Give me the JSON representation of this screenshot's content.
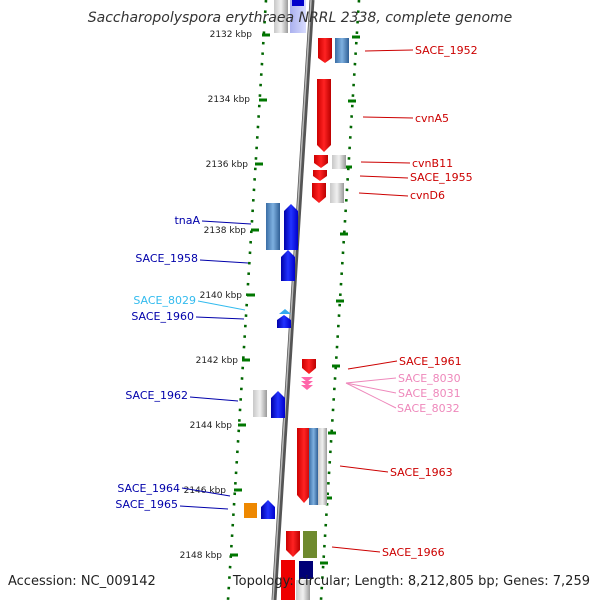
{
  "title": "Saccharopolyspora erythraea NRRL 2338, complete genome",
  "accession": "Accession: NC_009142",
  "topology": "Topology: circular; Length: 8,212,805 bp; Genes: 7,259",
  "colors": {
    "forward_gene": "#ff0000",
    "reverse_gene": "#0000ff",
    "light_blue_label": "#33bbee",
    "pink_label": "#ee88bb",
    "tick": "#007700"
  },
  "ticks": [
    "2132 kbp",
    "2134 kbp",
    "2136 kbp",
    "2138 kbp",
    "2140 kbp",
    "2142 kbp",
    "2144 kbp",
    "2146 kbp",
    "2148 kbp"
  ],
  "labels": {
    "right": [
      "SACE_1952",
      "cvnA5",
      "cvnB11",
      "SACE_1955",
      "cvnD6",
      "SACE_1961",
      "SACE_8030",
      "SACE_8031",
      "SACE_8032",
      "SACE_1963",
      "SACE_1966"
    ],
    "left": [
      "tnaA",
      "SACE_1958",
      "SACE_8029",
      "SACE_1960",
      "SACE_1962",
      "SACE_1964",
      "SACE_1965"
    ]
  }
}
